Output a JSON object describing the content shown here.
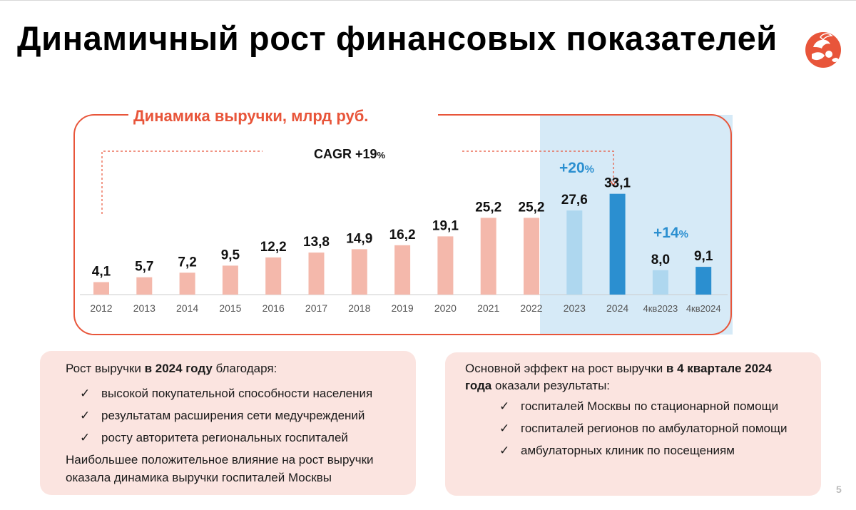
{
  "title": "Динамичный рост финансовых показателей",
  "logo": {
    "icon": "bird-with-chicks-logo-icon",
    "color": "#e8553a"
  },
  "chart_data": {
    "type": "bar",
    "title": "Динамика выручки, млрд руб.",
    "xlabel": "",
    "ylabel": "млрд руб.",
    "ylim": [
      0,
      35
    ],
    "categories": [
      "2012",
      "2013",
      "2014",
      "2015",
      "2016",
      "2017",
      "2018",
      "2019",
      "2020",
      "2021",
      "2022",
      "2023",
      "2024",
      "4кв2023",
      "4кв2024"
    ],
    "values": [
      4.1,
      5.7,
      7.2,
      9.5,
      12.2,
      13.8,
      14.9,
      16.2,
      19.1,
      25.2,
      25.2,
      27.6,
      33.1,
      8.0,
      9.1
    ],
    "labels": [
      "4,1",
      "5,7",
      "7,2",
      "9,5",
      "12,2",
      "13,8",
      "14,9",
      "16,2",
      "19,1",
      "25,2",
      "25,2",
      "27,6",
      "33,1",
      "8,0",
      "9,1"
    ],
    "bar_colors": [
      "#f4b8ab",
      "#f4b8ab",
      "#f4b8ab",
      "#f4b8ab",
      "#f4b8ab",
      "#f4b8ab",
      "#f4b8ab",
      "#f4b8ab",
      "#f4b8ab",
      "#f4b8ab",
      "#f4b8ab",
      "#aed7ef",
      "#2b8fd0",
      "#aed7ef",
      "#2b8fd0"
    ],
    "annotations": {
      "cagr_prefix": "CAGR +19",
      "cagr_suffix": "%",
      "growth_2024_prefix": "+20",
      "growth_2024_suffix": "%",
      "growth_q4_prefix": "+14",
      "growth_q4_suffix": "%"
    },
    "colors": {
      "frame": "#e8553a",
      "title": "#e8553a",
      "highlight_bg": "#d6eaf7",
      "growth_text": "#2b8fd0",
      "axis": "#cccccc",
      "tick_text": "#555555"
    }
  },
  "left_box": {
    "intro_prefix": "Рост выручки ",
    "intro_bold": "в 2024 году",
    "intro_suffix": " благодаря:",
    "check": "✓",
    "items": [
      "высокой покупательной способности населения",
      "результатам расширения сети медучреждений",
      "росту авторитета региональных госпиталей"
    ],
    "outro_line1": "Наибольшее положительное влияние на рост выручки",
    "outro_line2": "оказала динамика выручки госпиталей Москвы"
  },
  "right_box": {
    "intro_prefix": "Основной эффект на рост выручки ",
    "intro_bold1": "в 4 квартале 2024",
    "intro_bold2": "года",
    "intro_suffix": " оказали результаты:",
    "check": "✓",
    "items": [
      "госпиталей Москвы по стационарной помощи",
      "госпиталей регионов по амбулаторной помощи",
      "амбулаторных клиник по посещениям"
    ]
  },
  "page_number": "5"
}
